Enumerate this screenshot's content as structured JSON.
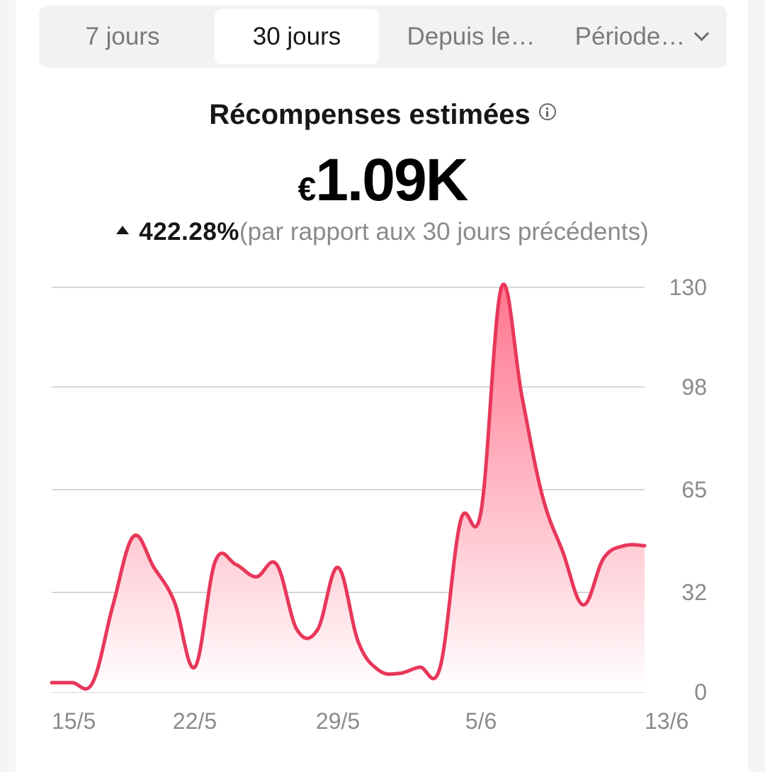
{
  "tabs": [
    {
      "label": "7 jours",
      "active": false
    },
    {
      "label": "30 jours",
      "active": true
    },
    {
      "label": "Depuis le…",
      "active": false
    },
    {
      "label": "Période…",
      "active": false,
      "icon": "chevron-down-icon"
    }
  ],
  "summary": {
    "title": "Récompenses estimées",
    "info_icon": "info-icon",
    "currency": "€",
    "value": "1.09K",
    "change_direction": "up",
    "change_pct": "422.28%",
    "comparison": "(par rapport aux 30 jours précédents)"
  },
  "colors": {
    "line": "#e8375a",
    "fill_top": "#ff6f8a",
    "fill_bottom": "#ffffff",
    "grid": "#c8c8c8",
    "tick": "#8a8a8a"
  },
  "chart_data": {
    "type": "area",
    "x": [
      "15/5",
      "16/5",
      "17/5",
      "18/5",
      "19/5",
      "20/5",
      "21/5",
      "22/5",
      "23/5",
      "24/5",
      "25/5",
      "26/5",
      "27/5",
      "28/5",
      "29/5",
      "30/5",
      "31/5",
      "1/6",
      "2/6",
      "3/6",
      "4/6",
      "5/6",
      "6/6",
      "7/6",
      "8/6",
      "9/6",
      "10/6",
      "11/6",
      "12/6",
      "13/6"
    ],
    "series": [
      {
        "values": [
          3,
          3,
          3,
          28,
          50,
          40,
          29,
          8,
          42,
          41,
          37,
          41,
          20,
          20,
          40,
          16,
          7,
          6,
          8,
          8,
          55,
          58,
          130,
          95,
          63,
          45,
          28,
          43,
          47,
          47
        ]
      }
    ],
    "xticks": [
      "15/5",
      "22/5",
      "29/5",
      "5/6",
      "13/6"
    ],
    "yticks": [
      "0",
      "32",
      "65",
      "98",
      "130"
    ],
    "ylim": [
      0,
      130
    ],
    "y_axis_position": "right",
    "grid": true,
    "legend": false
  }
}
